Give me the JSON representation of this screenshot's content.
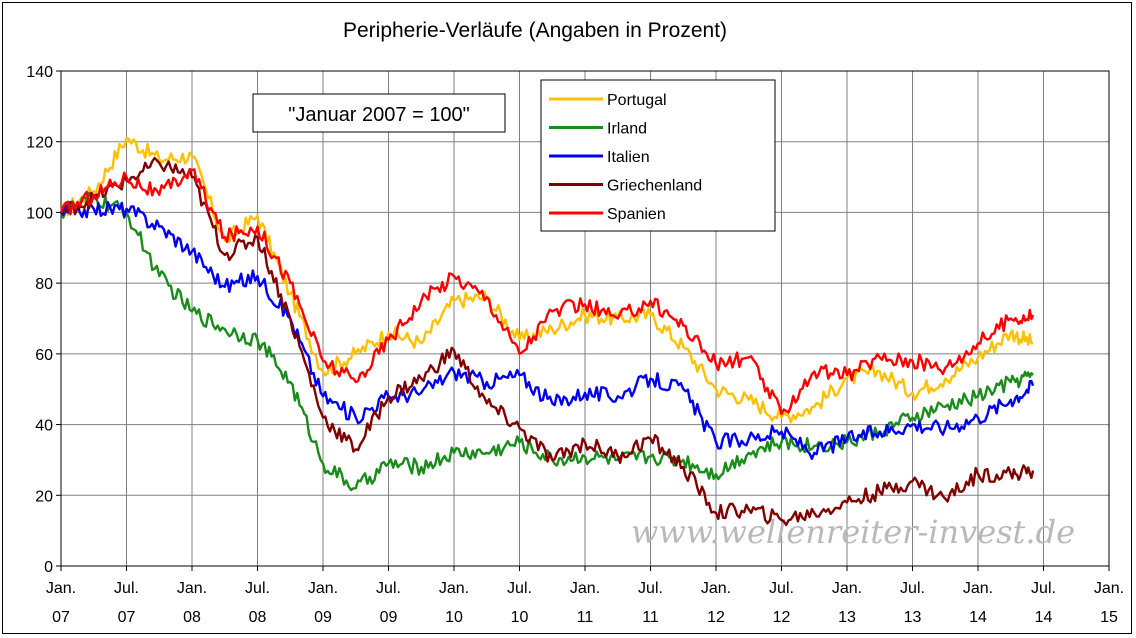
{
  "chart_data": {
    "type": "line",
    "title": "Peripherie-Verläufe (Angaben in Prozent)",
    "annotation": "\"Januar 2007 = 100\"",
    "watermark": "www.wellenreiter-invest.de",
    "xlabel": "",
    "ylabel": "",
    "ylim": [
      0,
      140
    ],
    "yticks": [
      0,
      20,
      40,
      60,
      80,
      100,
      120,
      140
    ],
    "xlim": [
      2007.0,
      2015.0
    ],
    "xtick_labels": [
      [
        "Jan.",
        "07"
      ],
      [
        "Jul.",
        "07"
      ],
      [
        "Jan.",
        "08"
      ],
      [
        "Jul.",
        "08"
      ],
      [
        "Jan.",
        "09"
      ],
      [
        "Jul.",
        "09"
      ],
      [
        "Jan.",
        "10"
      ],
      [
        "Jul.",
        "10"
      ],
      [
        "Jan.",
        "11"
      ],
      [
        "Jul.",
        "11"
      ],
      [
        "Jan.",
        "12"
      ],
      [
        "Jul.",
        "12"
      ],
      [
        "Jan.",
        "13"
      ],
      [
        "Jul.",
        "13"
      ],
      [
        "Jan.",
        "14"
      ],
      [
        "Jul.",
        "14"
      ],
      [
        "Jan.",
        "15"
      ]
    ],
    "grid": true,
    "legend_position": "top-center",
    "x": [
      2007.0,
      2007.25,
      2007.5,
      2007.75,
      2008.0,
      2008.25,
      2008.5,
      2008.75,
      2009.0,
      2009.25,
      2009.5,
      2009.75,
      2010.0,
      2010.25,
      2010.5,
      2010.75,
      2011.0,
      2011.25,
      2011.5,
      2011.75,
      2012.0,
      2012.25,
      2012.5,
      2012.75,
      2013.0,
      2013.25,
      2013.5,
      2013.75,
      2014.0,
      2014.25,
      2014.42
    ],
    "series": [
      {
        "name": "Portugal",
        "color": "#ffc000",
        "values": [
          100,
          106,
          121,
          115,
          116,
          92,
          99,
          77,
          55,
          60,
          66,
          63,
          75,
          76,
          64,
          67,
          71,
          70,
          71,
          62,
          50,
          47,
          42,
          45,
          53,
          55,
          49,
          53,
          59,
          66,
          63
        ]
      },
      {
        "name": "Irland",
        "color": "#1a8c1a",
        "values": [
          100,
          104,
          100,
          82,
          72,
          67,
          64,
          52,
          29,
          22,
          29,
          28,
          32,
          32,
          35,
          30,
          31,
          30,
          31,
          30,
          26,
          32,
          35,
          34,
          35,
          38,
          42,
          45,
          48,
          52,
          54
        ]
      },
      {
        "name": "Italien",
        "color": "#0000ee",
        "values": [
          100,
          101,
          101,
          96,
          89,
          79,
          82,
          70,
          48,
          42,
          48,
          49,
          55,
          52,
          54,
          46,
          49,
          48,
          53,
          50,
          35,
          36,
          38,
          32,
          36,
          38,
          40,
          39,
          42,
          47,
          51
        ]
      },
      {
        "name": "Griechenland",
        "color": "#800000",
        "values": [
          100,
          104,
          109,
          114,
          110,
          88,
          93,
          70,
          42,
          33,
          48,
          53,
          61,
          46,
          39,
          30,
          35,
          31,
          36,
          28,
          15,
          16,
          13,
          15,
          18,
          21,
          24,
          19,
          26,
          26,
          27
        ]
      },
      {
        "name": "Spanien",
        "color": "#ff0000",
        "values": [
          100,
          105,
          110,
          105,
          112,
          93,
          96,
          80,
          58,
          52,
          64,
          75,
          82,
          76,
          60,
          72,
          74,
          70,
          75,
          68,
          57,
          59,
          43,
          55,
          54,
          59,
          58,
          56,
          63,
          70,
          71
        ]
      }
    ]
  }
}
